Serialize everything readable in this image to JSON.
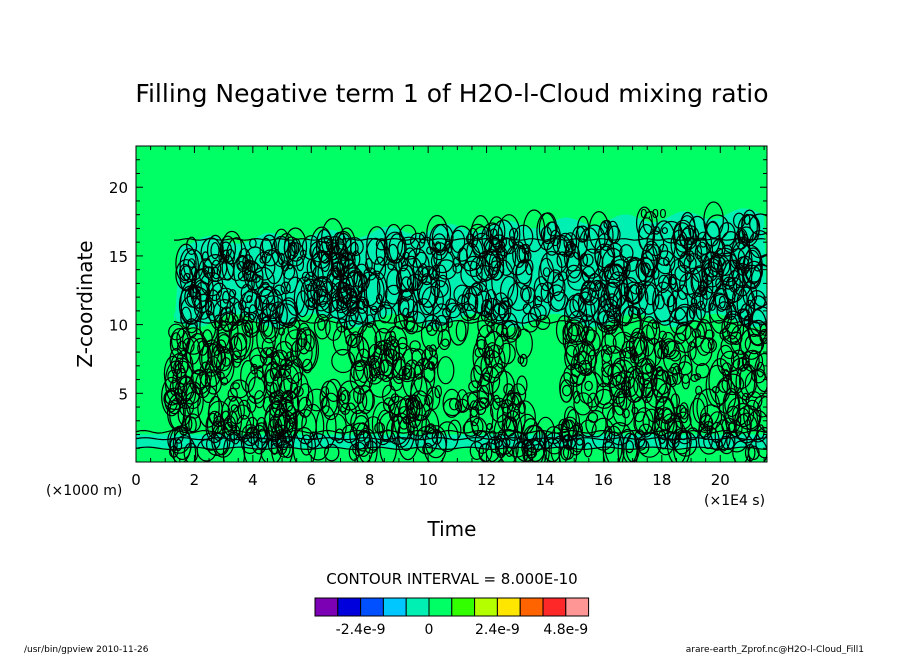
{
  "chart_data": {
    "type": "heatmap",
    "title": "Filling Negative term 1 of H2O-l-Cloud mixing ratio",
    "xlabel": "Time",
    "ylabel": "Z-coordinate",
    "x_unit": "(×1E4 s)",
    "y_unit": "(×1000 m)",
    "xlim": [
      0,
      21.6
    ],
    "ylim": [
      0,
      23
    ],
    "x_ticks": [
      0,
      2,
      4,
      6,
      8,
      10,
      12,
      14,
      16,
      18,
      20
    ],
    "y_ticks": [
      5,
      10,
      15,
      20
    ],
    "contour_interval_text": "CONTOUR INTERVAL = 8.000E-10",
    "contour_label": "0.00",
    "colorbar": {
      "colors": [
        "#7c00b4",
        "#0000dc",
        "#0050ff",
        "#00c8ff",
        "#00f0b4",
        "#00ff64",
        "#32ff00",
        "#b4ff00",
        "#ffe600",
        "#ff6400",
        "#ff2828",
        "#ff9696"
      ],
      "tick_labels": [
        "-2.4e-9",
        "0",
        "2.4e-9",
        "4.8e-9"
      ]
    },
    "fill_colors": {
      "background": "#00ff64",
      "negative_band": "#00f0b4",
      "contour_line": "#000000"
    }
  },
  "footer": {
    "left": "/usr/bin/gpview   2010-11-26",
    "right": "arare-earth_Zprof.nc@H2O-l-Cloud_Fill1"
  }
}
